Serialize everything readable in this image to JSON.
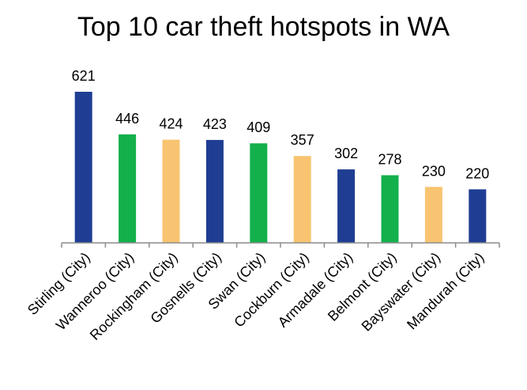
{
  "chart_data": {
    "type": "bar",
    "title": "Top 10 car theft hotspots in WA",
    "categories": [
      "Stirling (City)",
      "Wanneroo (City)",
      "Rockingham (City)",
      "Gosnells (City)",
      "Swan (City)",
      "Cockburn (City)",
      "Armadale (City)",
      "Belmont (City)",
      "Bayswater (City)",
      "Mandurah (City)"
    ],
    "values": [
      621,
      446,
      424,
      423,
      409,
      357,
      302,
      278,
      230,
      220
    ],
    "colors": [
      "#1f3e93",
      "#13b04c",
      "#f8c471",
      "#1f3e93",
      "#13b04c",
      "#f8c471",
      "#1f3e93",
      "#13b04c",
      "#f8c471",
      "#1f3e93"
    ],
    "ylim": [
      0,
      621
    ],
    "grid": false,
    "data_labels": true
  }
}
